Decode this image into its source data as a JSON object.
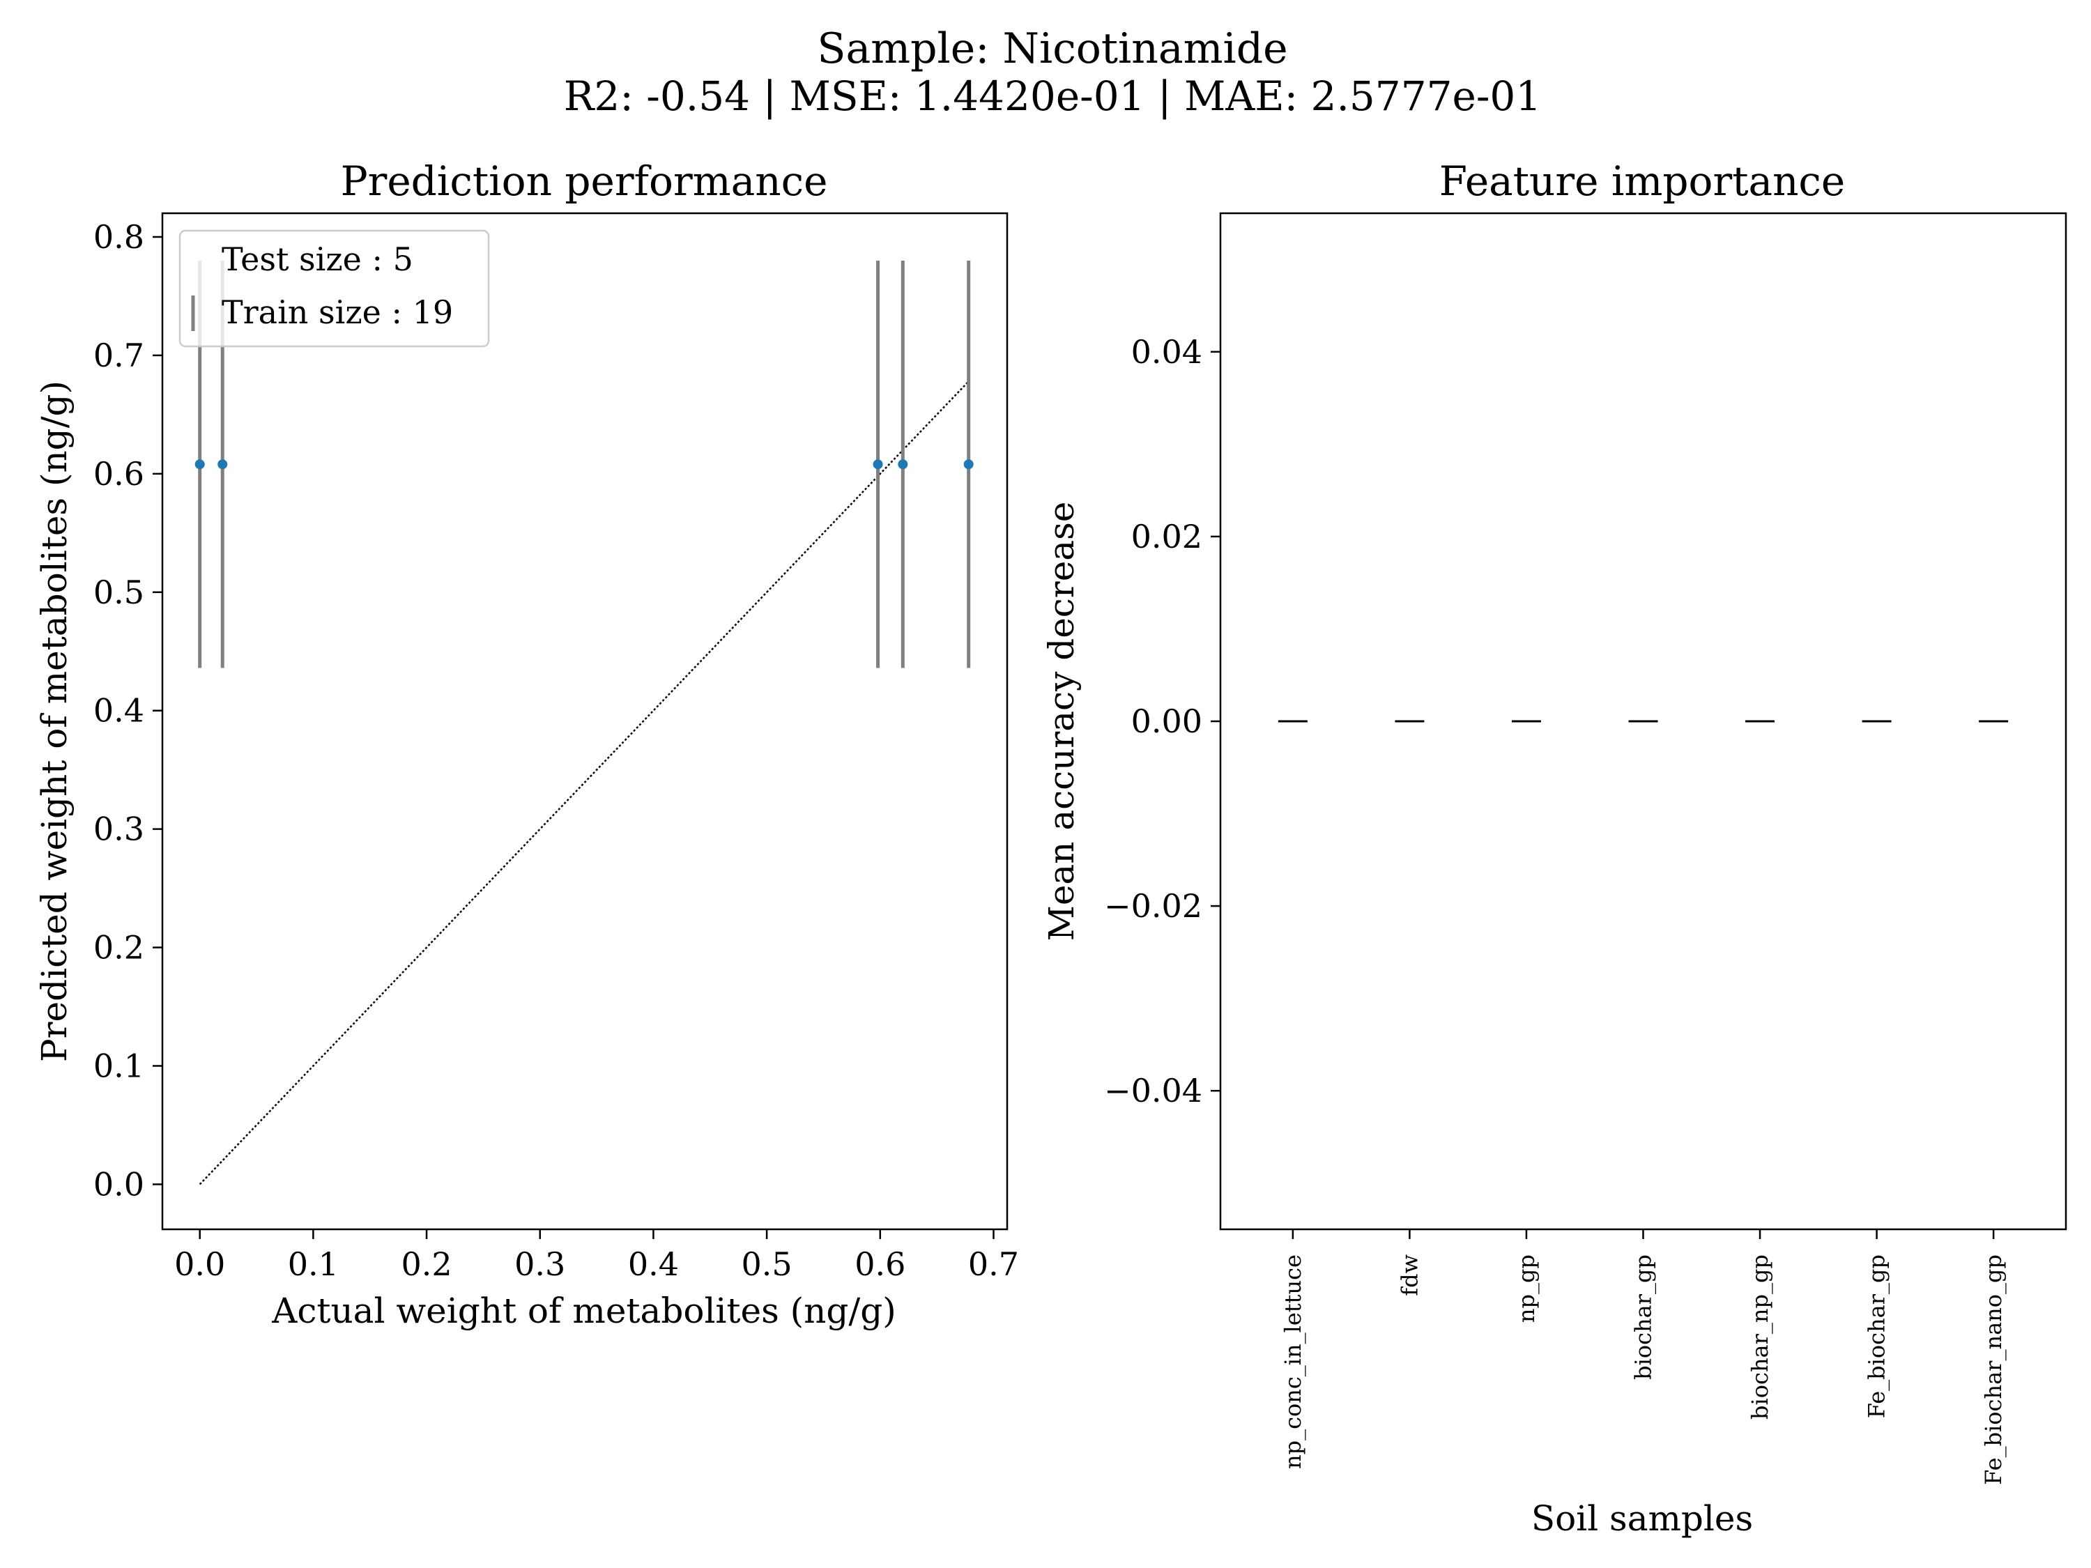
{
  "figure": {
    "title": "Sample: Nicotinamide",
    "subtitle": "R2: -0.54 | MSE: 1.4420e-01 | MAE: 2.5777e-01"
  },
  "chart_data": [
    {
      "type": "scatter",
      "title": "Prediction performance",
      "xlabel": "Actual weight of metabolites (ng/g)",
      "ylabel": "Predicted weight of metabolites (ng/g)",
      "xlim": [
        -0.033,
        0.712
      ],
      "ylim": [
        -0.038,
        0.82
      ],
      "xticks": [
        0.0,
        0.1,
        0.2,
        0.3,
        0.4,
        0.5,
        0.6,
        0.7
      ],
      "xtick_labels": [
        "0.0",
        "0.1",
        "0.2",
        "0.3",
        "0.4",
        "0.5",
        "0.6",
        "0.7"
      ],
      "yticks": [
        0.0,
        0.1,
        0.2,
        0.3,
        0.4,
        0.5,
        0.6,
        0.7,
        0.8
      ],
      "ytick_labels": [
        "0.0",
        "0.1",
        "0.2",
        "0.3",
        "0.4",
        "0.5",
        "0.6",
        "0.7",
        "0.8"
      ],
      "points": [
        {
          "x": 0.0,
          "y": 0.608,
          "err_low": 0.436,
          "err_high": 0.78
        },
        {
          "x": 0.02,
          "y": 0.608,
          "err_low": 0.436,
          "err_high": 0.78
        },
        {
          "x": 0.598,
          "y": 0.608,
          "err_low": 0.436,
          "err_high": 0.78
        },
        {
          "x": 0.62,
          "y": 0.608,
          "err_low": 0.436,
          "err_high": 0.78
        },
        {
          "x": 0.678,
          "y": 0.608,
          "err_low": 0.436,
          "err_high": 0.78
        }
      ],
      "reference_line": {
        "x": [
          0.0,
          0.678
        ],
        "y": [
          0.0,
          0.678
        ]
      },
      "legend": {
        "position": "upper-left",
        "entries": [
          "Test size : 5",
          "Train size : 19"
        ]
      },
      "colors": {
        "points": "#1f77b4",
        "errorbars": "#808080",
        "reference": "#000000"
      },
      "grid": false
    },
    {
      "type": "bar",
      "title": "Feature importance",
      "xlabel": "Soil samples",
      "ylabel": "Mean accuracy decrease",
      "categories": [
        "np_conc_in_lettuce",
        "fdw",
        "np_gp",
        "biochar_gp",
        "biochar_np_gp",
        "Fe_biochar_gp",
        "Fe_biochar_nano_gp"
      ],
      "values": [
        0,
        0,
        0,
        0,
        0,
        0,
        0
      ],
      "errors": [
        0,
        0,
        0,
        0,
        0,
        0,
        0
      ],
      "ylim": [
        -0.055,
        0.055
      ],
      "yticks": [
        -0.04,
        -0.02,
        0.0,
        0.02,
        0.04
      ],
      "ytick_labels": [
        "−0.04",
        "−0.02",
        "0.00",
        "0.02",
        "0.04"
      ],
      "colors": {
        "errorbars": "#000000"
      },
      "grid": false
    }
  ]
}
